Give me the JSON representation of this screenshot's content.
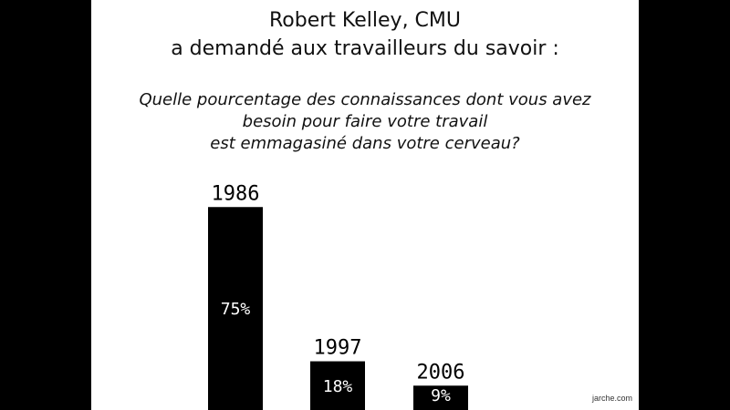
{
  "slide": {
    "title_lines": [
      "Robert Kelley, CMU",
      "a demandé aux travailleurs du savoir :"
    ],
    "question_lines": [
      "Quelle pourcentage des connaissances dont vous avez",
      "besoin pour faire votre travail",
      "est emmagasiné dans votre cerveau?"
    ],
    "credit": "jarche.com"
  },
  "colors": {
    "bar": "#000000",
    "background": "#ffffff",
    "frame": "#000000"
  },
  "chart_data": {
    "type": "bar",
    "categories": [
      "1986",
      "1997",
      "2006"
    ],
    "values": [
      75,
      18,
      9
    ],
    "value_labels": [
      "75%",
      "18%",
      "9%"
    ],
    "title": "",
    "xlabel": "",
    "ylabel": "",
    "ylim": [
      0,
      100
    ],
    "grid": false
  }
}
